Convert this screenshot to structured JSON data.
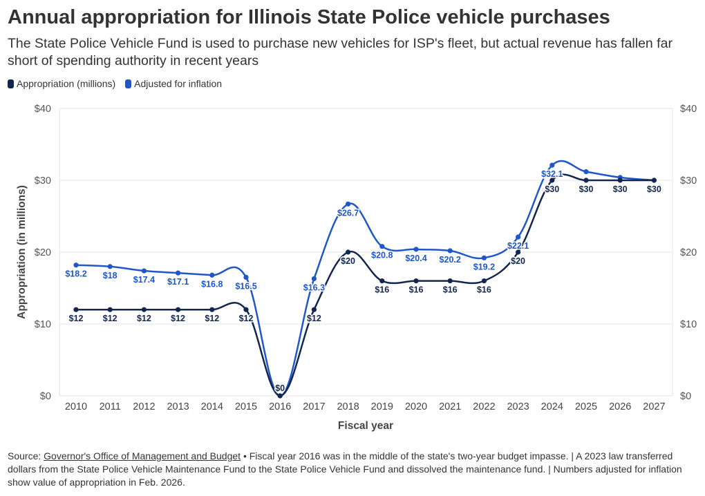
{
  "title": "Annual appropriation for Illinois State Police vehicle purchases",
  "subtitle": "The State Police Vehicle Fund is used to purchase new vehicles for ISP's fleet, but actual revenue has fallen far short of spending authority in recent years",
  "footer": {
    "source_label": "Source:",
    "source_link": "Governor's Office of Management and Budget",
    "note": "• Fiscal year 2016 was in the middle of the state's two-year budget impasse. | A 2023 law transferred dollars from the State Police Vehicle Maintenance Fund to the State Police Vehicle Fund and dissolved the maintenance fund. | Numbers adjusted for inflation show value of appropriation in Feb. 2026."
  },
  "chart_data": {
    "type": "line",
    "xlabel": "Fiscal year",
    "ylabel": "Appropriation (in millions)",
    "ylim": [
      0,
      40
    ],
    "yticks": [
      "$0",
      "$10",
      "$20",
      "$30",
      "$40"
    ],
    "x": [
      "2010",
      "2011",
      "2012",
      "2013",
      "2014",
      "2015",
      "2016",
      "2017",
      "2018",
      "2019",
      "2020",
      "2021",
      "2022",
      "2023",
      "2024",
      "2025",
      "2026",
      "2027"
    ],
    "legend_position": "top-left",
    "grid": true,
    "series": [
      {
        "name": "Appropriation (millions)",
        "color": "#12264f",
        "values": [
          12,
          12,
          12,
          12,
          12,
          12,
          0,
          12,
          20,
          16,
          16,
          16,
          16,
          20,
          30,
          30,
          30,
          30
        ],
        "labels": [
          "$12",
          "$12",
          "$12",
          "$12",
          "$12",
          "$12",
          "$0",
          "$12",
          "$20",
          "$16",
          "$16",
          "$16",
          "$16",
          "$20",
          "$30",
          "$30",
          "$30",
          "$30"
        ]
      },
      {
        "name": "Adjusted for inflation",
        "color": "#1f56c9",
        "values": [
          18.2,
          18,
          17.4,
          17.1,
          16.8,
          16.5,
          0,
          16.3,
          26.7,
          20.8,
          20.4,
          20.2,
          19.2,
          22.1,
          32.1,
          31.2,
          30.4,
          30
        ],
        "labels": [
          "$18.2",
          "$18",
          "$17.4",
          "$17.1",
          "$16.8",
          "$16.5",
          "",
          "$16.3",
          "$26.7",
          "$20.8",
          "$20.4",
          "$20.2",
          "$19.2",
          "$22.1",
          "$32.1",
          "",
          "",
          ""
        ]
      }
    ]
  }
}
